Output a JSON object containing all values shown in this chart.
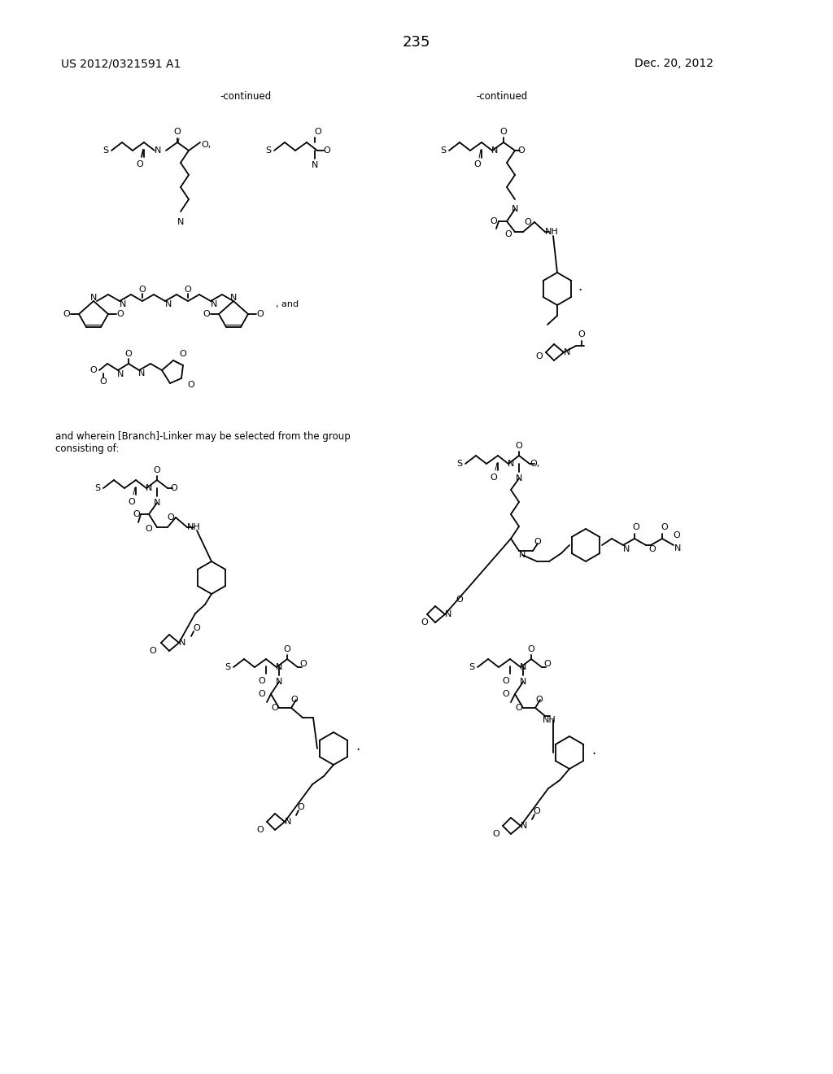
{
  "page_number": "235",
  "header_left": "US 2012/0321591 A1",
  "header_right": "Dec. 20, 2012",
  "background_color": "#ffffff",
  "text_color": "#000000",
  "continued_label": "-continued",
  "branch_linker_text": "and wherein [Branch]-Linker may be selected from the group\nconsisting of:"
}
